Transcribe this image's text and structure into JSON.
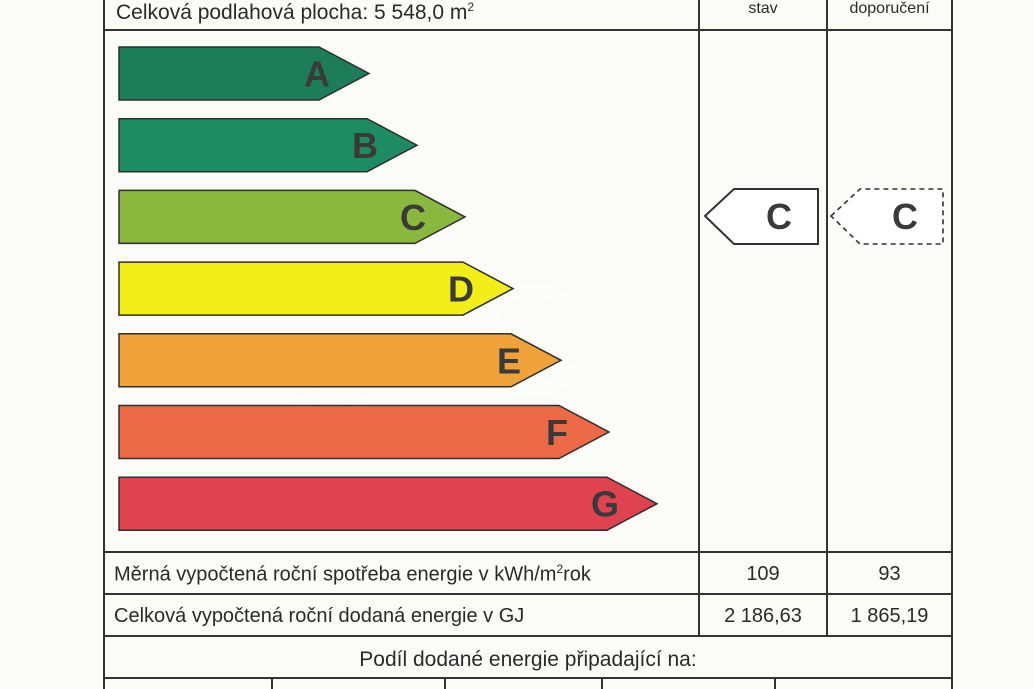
{
  "header": {
    "floor_area_label": "Celková podlahová plocha: 5 548,0 m",
    "floor_area_sup": "2",
    "col_state": "stav",
    "col_recommendation": "doporučení"
  },
  "scale": {
    "classes": [
      {
        "letter": "A",
        "color": "#1d7d5a"
      },
      {
        "letter": "B",
        "color": "#1d8b63"
      },
      {
        "letter": "C",
        "color": "#8ab83e"
      },
      {
        "letter": "D",
        "color": "#f2ee18"
      },
      {
        "letter": "E",
        "color": "#f0a23a"
      },
      {
        "letter": "F",
        "color": "#ec6a45"
      },
      {
        "letter": "G",
        "color": "#e1424f"
      }
    ],
    "current_class": "C",
    "recommended_class": "C"
  },
  "rows": {
    "specific": {
      "label": "Měrná vypočtená roční spotřeba energie v kWh/m",
      "label_sup": "2",
      "label_suffix": "rok",
      "state": "109",
      "recommended": "93"
    },
    "total": {
      "label": "Celková vypočtená roční dodaná energie v GJ",
      "state": "2 186,63",
      "recommended": "1 865,19"
    }
  },
  "footer": {
    "share_label": "Podíl dodané energie připadající na:"
  },
  "watermark": {
    "letter": "C"
  }
}
